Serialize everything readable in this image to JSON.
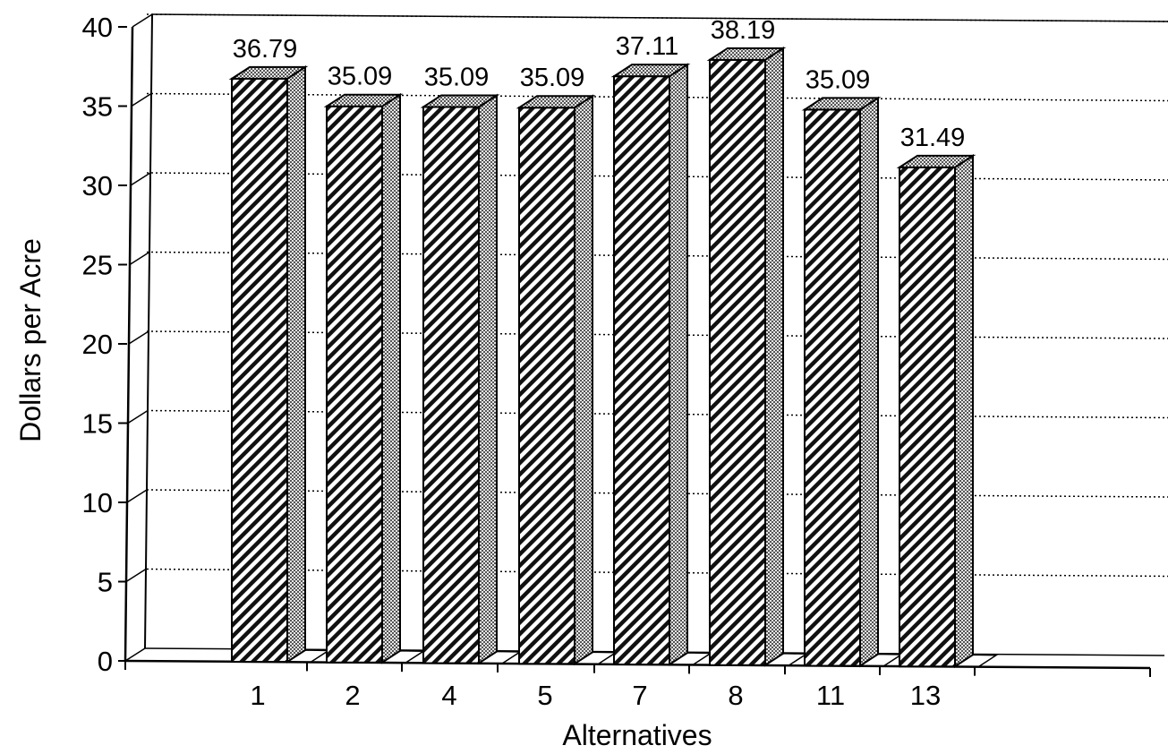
{
  "chart_data": {
    "type": "bar",
    "style": "3d-hatched",
    "categories": [
      "1",
      "2",
      "4",
      "5",
      "7",
      "8",
      "11",
      "13"
    ],
    "values": [
      36.79,
      35.09,
      35.09,
      35.09,
      37.11,
      38.19,
      35.09,
      31.49
    ],
    "value_labels": [
      "36.79",
      "35.09",
      "35.09",
      "35.09",
      "37.11",
      "38.19",
      "35.09",
      "31.49"
    ],
    "xlabel": "Alternatives",
    "ylabel": "Dollars per Acre",
    "ylim": [
      0,
      40
    ],
    "yticks": [
      "0",
      "5",
      "10",
      "15",
      "20",
      "25",
      "30",
      "35",
      "40"
    ],
    "grid": "horizontal dotted",
    "legend": "none"
  },
  "colors": {
    "ink": "#000000",
    "background": "#ffffff",
    "side_face": "#bdbdbd",
    "top_face": "#d6d6d6"
  }
}
